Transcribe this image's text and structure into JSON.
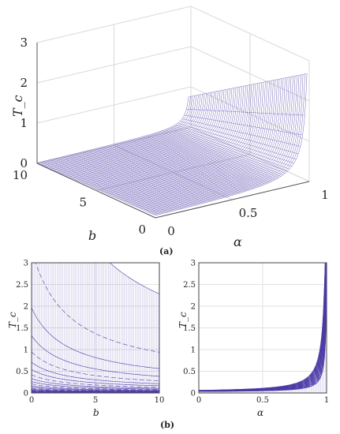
{
  "chart_data": [
    {
      "id": "a",
      "type": "surface",
      "caption": "(a)",
      "zlabel": "T_c",
      "xlabel": "α",
      "ylabel": "b",
      "x_ticks": [
        "0",
        "0.5",
        "1"
      ],
      "y_ticks": [
        "0",
        "5",
        "10"
      ],
      "z_ticks": [
        "0",
        "1",
        "2",
        "3"
      ],
      "xlim": [
        0,
        1
      ],
      "ylim": [
        0,
        10
      ],
      "zlim": [
        0,
        3
      ],
      "grid": true,
      "color": "#4b3aa6"
    },
    {
      "id": "b-left",
      "type": "line",
      "caption": "(b)",
      "xlabel": "b",
      "ylabel": "T_c",
      "x_ticks": [
        "0",
        "5",
        "10"
      ],
      "y_ticks": [
        "0",
        "0.5",
        "1",
        "1.5",
        "2",
        "2.5",
        "3"
      ],
      "xlim": [
        0,
        10
      ],
      "ylim": [
        0,
        3
      ],
      "grid": true,
      "color": "#4b3aa6"
    },
    {
      "id": "b-right",
      "type": "line",
      "xlabel": "α",
      "ylabel": "T_c",
      "x_ticks": [
        "0",
        "0.5",
        "1"
      ],
      "y_ticks": [
        "0",
        "0.5",
        "1",
        "1.5",
        "2",
        "2.5",
        "3"
      ],
      "xlim": [
        0,
        1
      ],
      "ylim": [
        0,
        3
      ],
      "grid": true,
      "color": "#4b3aa6"
    }
  ]
}
